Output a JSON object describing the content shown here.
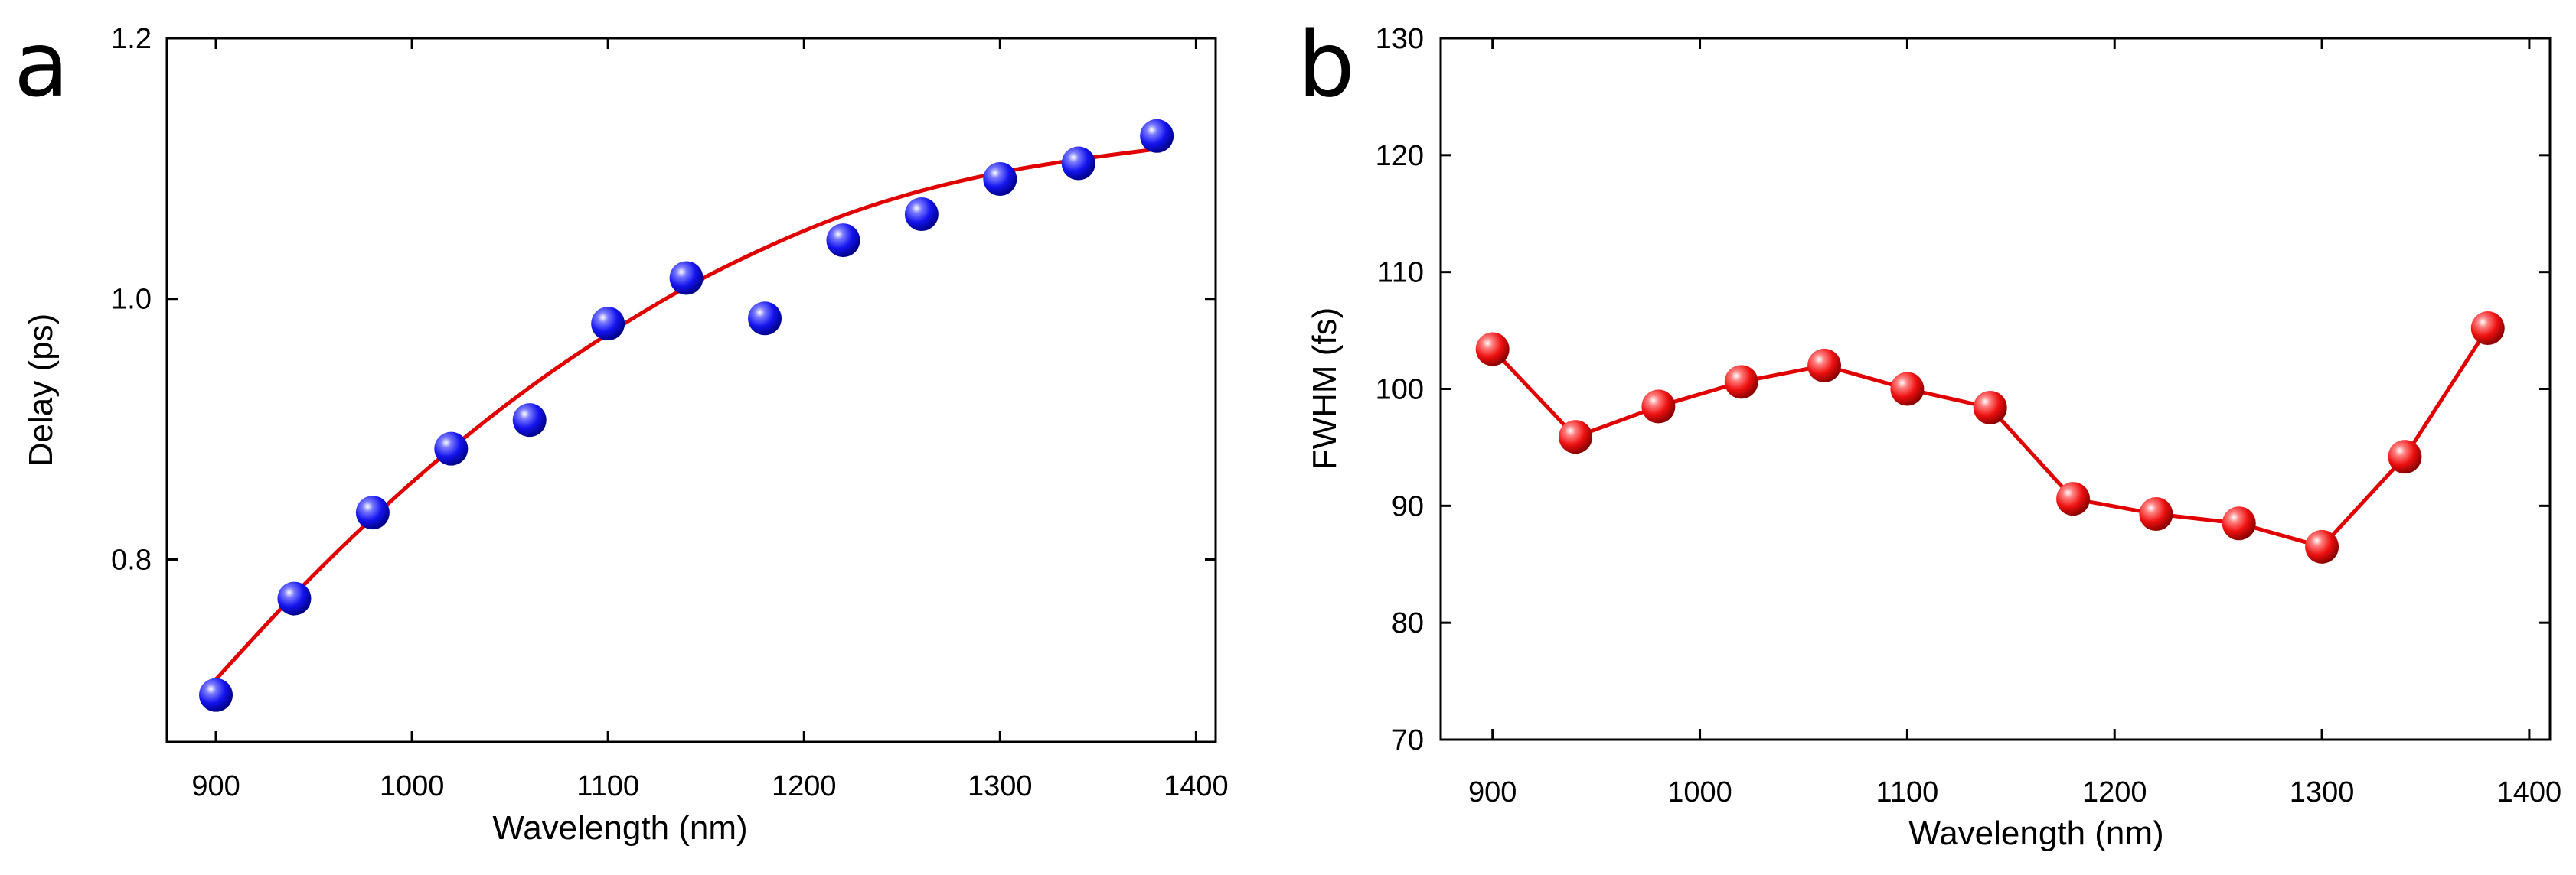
{
  "chart_data": [
    {
      "panel_label": "a",
      "type": "scatter",
      "xlabel": "Wavelength (nm)",
      "ylabel": "Delay (ps)",
      "xlim": [
        875,
        1410
      ],
      "ylim": [
        0.66,
        1.2
      ],
      "xticks": [
        900,
        1000,
        1100,
        1200,
        1300,
        1400
      ],
      "xtick_labels": [
        "900",
        "1000",
        "1100",
        "1200",
        "1300",
        "1400"
      ],
      "yticks": [
        0.8,
        1.0,
        1.2
      ],
      "ytick_labels": [
        "0.8",
        "1.0",
        "1.2"
      ],
      "marker_color": "#1a1aff",
      "line_color": "#e00000",
      "series": [
        {
          "name": "Delay",
          "x": [
            900,
            940,
            980,
            1020,
            1060,
            1100,
            1140,
            1180,
            1220,
            1260,
            1300,
            1340,
            1380
          ],
          "y": [
            0.696,
            0.77,
            0.836,
            0.885,
            0.907,
            0.981,
            1.016,
            0.985,
            1.045,
            1.065,
            1.092,
            1.104,
            1.125
          ]
        }
      ],
      "fit": {
        "name": "Fit",
        "x": [
          900,
          940,
          980,
          1020,
          1060,
          1100,
          1140,
          1180,
          1220,
          1260,
          1300,
          1340,
          1380
        ],
        "y": [
          0.708,
          0.773,
          0.832,
          0.885,
          0.932,
          0.973,
          1.009,
          1.039,
          1.064,
          1.083,
          1.097,
          1.107,
          1.115
        ]
      }
    },
    {
      "panel_label": "b",
      "type": "line",
      "xlabel": "Wavelength (nm)",
      "ylabel": "FWHM (fs)",
      "xlim": [
        875,
        1410
      ],
      "ylim": [
        70,
        130
      ],
      "xticks": [
        900,
        1000,
        1100,
        1200,
        1300,
        1400
      ],
      "xtick_labels": [
        "900",
        "1000",
        "1100",
        "1200",
        "1300",
        "1400"
      ],
      "yticks": [
        70,
        80,
        90,
        100,
        110,
        120,
        130
      ],
      "ytick_labels": [
        "70",
        "80",
        "90",
        "100",
        "110",
        "120",
        "130"
      ],
      "marker_color": "#e00000",
      "line_color": "#e00000",
      "series": [
        {
          "name": "FWHM",
          "x": [
            900,
            940,
            980,
            1020,
            1060,
            1100,
            1140,
            1180,
            1220,
            1260,
            1300,
            1340,
            1380
          ],
          "y": [
            103.4,
            95.9,
            98.5,
            100.6,
            102.0,
            100.0,
            98.4,
            90.6,
            89.3,
            88.5,
            86.5,
            94.2,
            105.2
          ]
        }
      ]
    }
  ]
}
